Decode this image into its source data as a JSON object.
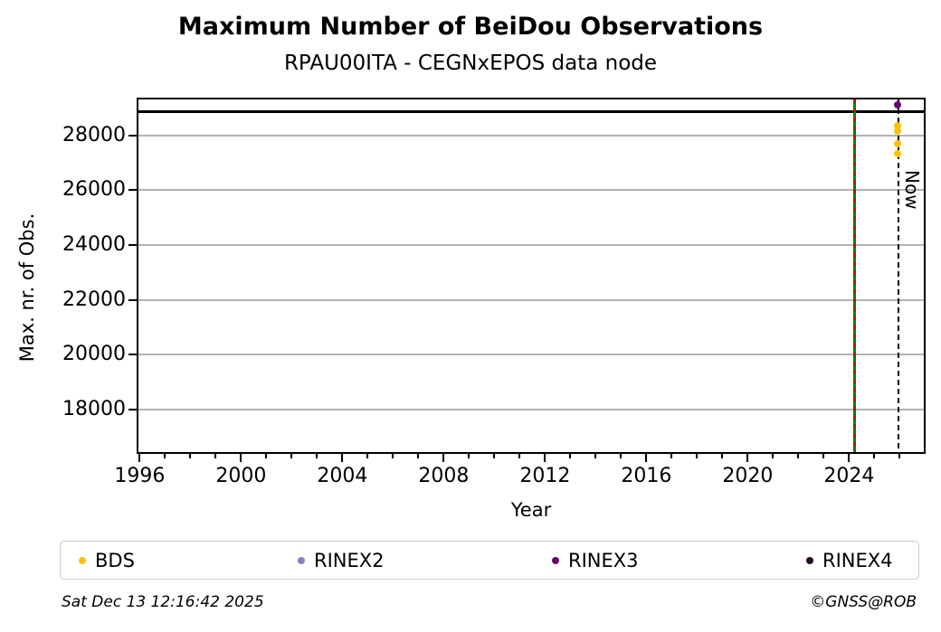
{
  "chart_data": {
    "type": "scatter",
    "title": "Maximum Number of BeiDou Observations",
    "subtitle": "RPAU00ITA - CEGNxEPOS data node",
    "xlabel": "Year",
    "ylabel": "Max. nr. of Obs.",
    "xlim": [
      1995.95,
      2026.95
    ],
    "ylim": [
      16450,
      29310
    ],
    "xticks": [
      1996,
      2000,
      2004,
      2008,
      2012,
      2016,
      2020,
      2024
    ],
    "minor_xticks_every_years": 1,
    "yticks": [
      18000,
      20000,
      22000,
      24000,
      26000,
      28000
    ],
    "grid": "horizontal",
    "grid_color": "#b2b2b2",
    "hlines": [
      {
        "y": 28880,
        "color": "#000000"
      }
    ],
    "vlines": [
      {
        "x": 2024.2,
        "style": "solid-with-dash-overlay",
        "color": "#007f00",
        "dash_color": "#d40000",
        "label": ""
      },
      {
        "x": 2025.95,
        "style": "dashed",
        "color": "#000000",
        "label": "Now"
      }
    ],
    "series": [
      {
        "name": "BDS",
        "color": "#ffc107",
        "points": [
          [
            2025.93,
            28370
          ],
          [
            2025.93,
            28160
          ],
          [
            2025.93,
            27700
          ],
          [
            2025.93,
            27320
          ]
        ]
      },
      {
        "name": "RINEX2",
        "color": "#8781c1",
        "points": []
      },
      {
        "name": "RINEX3",
        "color": "#67056f",
        "points": [
          [
            2025.93,
            29100
          ]
        ]
      },
      {
        "name": "RINEX4",
        "color": "#220b22",
        "points": []
      }
    ],
    "legend": {
      "position": "bottom",
      "entries": [
        "BDS",
        "RINEX2",
        "RINEX3",
        "RINEX4"
      ]
    }
  },
  "footer": {
    "timestamp": "Sat Dec 13 12:16:42 2025",
    "copyright": "©GNSS@ROB"
  }
}
